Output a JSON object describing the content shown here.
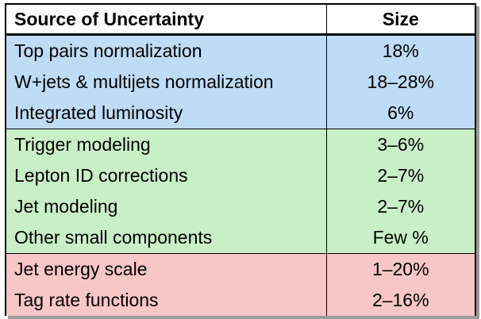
{
  "table": {
    "headers": [
      "Source of Uncertainty",
      "Size"
    ],
    "rows": [
      {
        "source": "Top pairs normalization",
        "size": "18%",
        "group": "blue"
      },
      {
        "source": "W+jets & multijets normalization",
        "size": "18–28%",
        "group": "blue"
      },
      {
        "source": "Integrated luminosity",
        "size": "6%",
        "group": "blue"
      },
      {
        "source": "Trigger modeling",
        "size": "3–6%",
        "group": "green"
      },
      {
        "source": "Lepton ID corrections",
        "size": "2–7%",
        "group": "green"
      },
      {
        "source": "Jet modeling",
        "size": "2–7%",
        "group": "green"
      },
      {
        "source": "Other small components",
        "size": "Few %",
        "group": "green"
      },
      {
        "source": "Jet energy scale",
        "size": "1–20%",
        "group": "red"
      },
      {
        "source": "Tag rate functions",
        "size": "2–16%",
        "group": "red"
      }
    ]
  },
  "colors": {
    "blue": "#bfdcf6",
    "green": "#c9efc6",
    "red": "#f7c6c6"
  }
}
